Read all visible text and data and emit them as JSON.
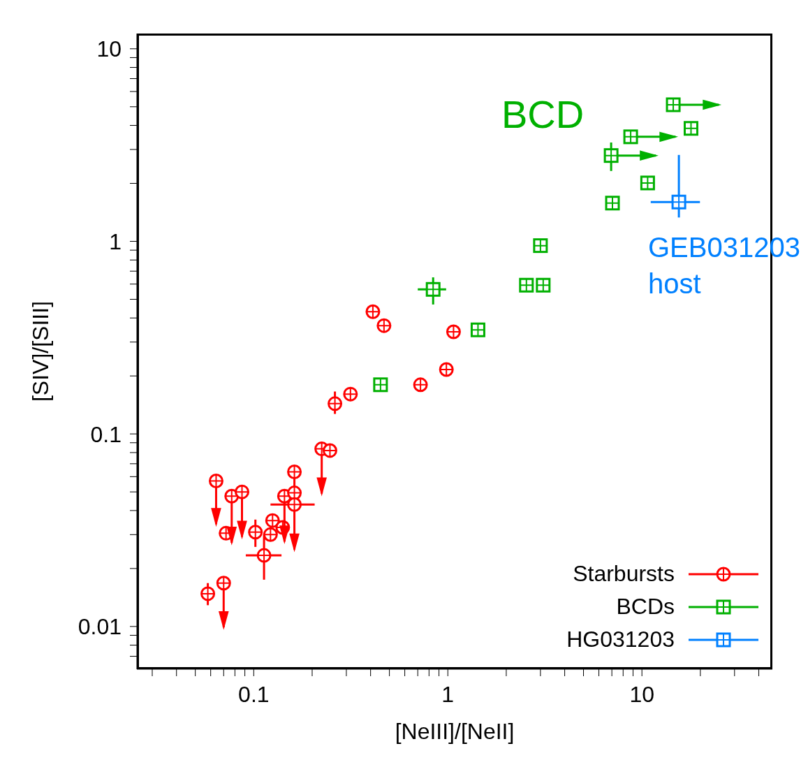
{
  "chart_data": {
    "type": "scatter",
    "xlabel": "[NeIII]/[NeII]",
    "ylabel": "[SIV]/[SIII]",
    "log": "xy",
    "legend": "bottom right",
    "xlim": [
      0.025,
      47
    ],
    "ylim": [
      0.006,
      12
    ],
    "xticks": [
      {
        "value": 0.03,
        "label": null
      },
      {
        "value": 0.04,
        "label": null
      },
      {
        "value": 0.05,
        "label": null
      },
      {
        "value": 0.06,
        "label": null
      },
      {
        "value": 0.07,
        "label": null
      },
      {
        "value": 0.08,
        "label": null
      },
      {
        "value": 0.09,
        "label": null
      },
      0.1,
      {
        "value": 0.2,
        "label": null
      },
      {
        "value": 0.3,
        "label": null
      },
      {
        "value": 0.4,
        "label": null
      },
      {
        "value": 0.5,
        "label": null
      },
      {
        "value": 0.6,
        "label": null
      },
      {
        "value": 0.7,
        "label": null
      },
      {
        "value": 0.8,
        "label": null
      },
      {
        "value": 0.9,
        "label": null
      },
      1,
      {
        "value": 2,
        "label": null
      },
      {
        "value": 3,
        "label": null
      },
      {
        "value": 4,
        "label": null
      },
      {
        "value": 5,
        "label": null
      },
      {
        "value": 6,
        "label": null
      },
      {
        "value": 7,
        "label": null
      },
      {
        "value": 8,
        "label": null
      },
      {
        "value": 9,
        "label": null
      },
      10,
      {
        "value": 20,
        "label": null
      },
      {
        "value": 30,
        "label": null
      },
      {
        "value": 40,
        "label": null
      }
    ],
    "yticks": [
      {
        "value": 0.007,
        "label": null
      },
      {
        "value": 0.008,
        "label": null
      },
      {
        "value": 0.009,
        "label": null
      },
      0.01,
      {
        "value": 0.02,
        "label": null
      },
      {
        "value": 0.03,
        "label": null
      },
      {
        "value": 0.04,
        "label": null
      },
      {
        "value": 0.05,
        "label": null
      },
      {
        "value": 0.06,
        "label": null
      },
      {
        "value": 0.07,
        "label": null
      },
      {
        "value": 0.08,
        "label": null
      },
      {
        "value": 0.09,
        "label": null
      },
      0.1,
      {
        "value": 0.2,
        "label": null
      },
      {
        "value": 0.3,
        "label": null
      },
      {
        "value": 0.4,
        "label": null
      },
      {
        "value": 0.5,
        "label": null
      },
      {
        "value": 0.6,
        "label": null
      },
      {
        "value": 0.7,
        "label": null
      },
      {
        "value": 0.8,
        "label": null
      },
      {
        "value": 0.9,
        "label": null
      },
      1,
      {
        "value": 2,
        "label": null
      },
      {
        "value": 3,
        "label": null
      },
      {
        "value": 4,
        "label": null
      },
      {
        "value": 5,
        "label": null
      },
      {
        "value": 6,
        "label": null
      },
      {
        "value": 7,
        "label": null
      },
      {
        "value": 8,
        "label": null
      },
      {
        "value": 9,
        "label": null
      },
      10
    ],
    "series": [
      {
        "name": "Starbursts",
        "color": "#ff0000",
        "marker": "circle",
        "x": [
          0.058,
          0.07,
          0.064,
          0.072,
          0.077,
          0.087,
          0.102,
          0.113,
          0.122,
          0.125,
          0.141,
          0.144,
          0.162,
          0.162,
          0.162,
          0.224,
          0.247,
          0.262,
          0.315,
          0.411,
          0.469,
          0.723,
          0.983,
          1.07
        ],
        "values": [
          0.0148,
          0.0168,
          0.057,
          0.0305,
          0.0475,
          0.05,
          0.0309,
          0.0234,
          0.03,
          0.0355,
          0.0327,
          0.0475,
          0.0635,
          0.0494,
          0.043,
          0.0836,
          0.082,
          0.1436,
          0.161,
          0.431,
          0.365,
          0.18,
          0.216,
          0.339
        ],
        "errors": [
          [
            0.0129,
            0.0168
          ],
          [
            0.0099,
            0.0168
          ],
          [
            0.034,
            0.057
          ],
          null,
          [
            0.0272,
            0.0475
          ],
          [
            0.0292,
            0.05
          ],
          [
            0.0259,
            0.0359
          ],
          [
            0.0175,
            0.03
          ],
          null,
          null,
          null,
          [
            0.0276,
            0.0475
          ],
          [
            0.0251,
            0.0635
          ],
          null,
          null,
          [
            0.049,
            0.0836
          ],
          null,
          [
            0.127,
            0.166
          ],
          null,
          null,
          null,
          null,
          null,
          null
        ],
        "xerrors": [
          null,
          null,
          null,
          null,
          null,
          null,
          null,
          [
            0.091,
            0.139
          ],
          null,
          null,
          null,
          null,
          null,
          null,
          [
            0.122,
            0.206
          ],
          null,
          null,
          null,
          null,
          null,
          null,
          null,
          null,
          null
        ]
      },
      {
        "name": "BCDs",
        "color": "#00b000",
        "marker": "square",
        "x": [
          0.45,
          0.84,
          1.43,
          2.54,
          3.1,
          3.0,
          7.05,
          10.7,
          6.94,
          8.75,
          14.5,
          17.9
        ],
        "values": [
          0.18,
          0.563,
          0.347,
          0.592,
          0.592,
          0.95,
          1.58,
          2.01,
          2.79,
          3.49,
          5.12,
          3.86
        ],
        "errors": [
          null,
          [
            0.47,
            0.65
          ],
          null,
          null,
          null,
          null,
          null,
          null,
          [
            2.32,
            3.26
          ],
          null,
          null,
          null
        ],
        "xerrors": [
          null,
          [
            0.7,
            0.98
          ],
          null,
          null,
          null,
          null,
          null,
          null,
          [
            6.94,
            11.8
          ],
          [
            8.75,
            14.9
          ],
          [
            14.5,
            24.9
          ],
          null
        ]
      },
      {
        "name": "HG031203",
        "color": "#0080ff",
        "marker": "square",
        "x": [
          15.5
        ],
        "values": [
          1.6
        ],
        "errors": [
          [
            1.33,
            2.81
          ]
        ],
        "xerrors": [
          [
            11.1,
            19.9
          ]
        ]
      }
    ],
    "annotations": [
      "BCD",
      "GEB031203 host"
    ]
  }
}
